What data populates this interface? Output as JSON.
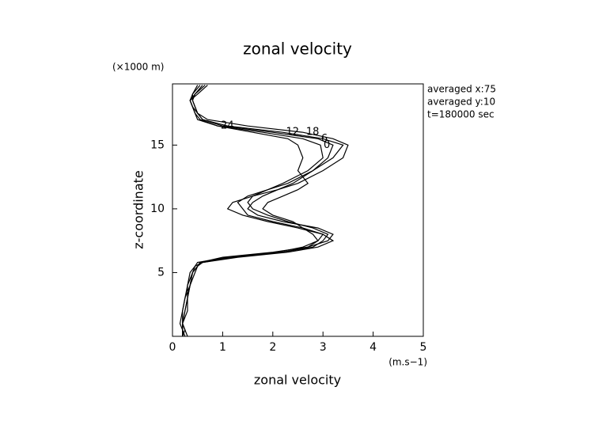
{
  "chart_data": {
    "type": "line",
    "title": "zonal velocity",
    "x_label": "zonal velocity",
    "y_label": "z-coordinate",
    "x_unit": "(m.s−1)",
    "y_unit": "(×1000 m)",
    "annotations": [
      "averaged  x:75",
      "averaged  y:10",
      "t=180000 sec"
    ],
    "xlim": [
      0,
      5
    ],
    "xticks": [
      0,
      1,
      2,
      3,
      4,
      5
    ],
    "ylim": [
      0,
      19.8
    ],
    "yticks": [
      5,
      10,
      15
    ],
    "y": [
      0,
      0.5,
      1,
      2,
      3,
      4,
      5,
      5.5,
      5.8,
      6.2,
      6.6,
      7,
      7.5,
      8,
      8.5,
      9,
      9.5,
      10,
      10.5,
      11,
      11.5,
      12,
      13,
      14,
      15,
      15.5,
      16,
      16.5,
      17,
      17.5,
      18,
      18.5,
      19,
      19.7
    ],
    "series": [
      {
        "name": "0",
        "color": "#000000",
        "values": [
          0.2,
          0.2,
          0.15,
          0.2,
          0.25,
          0.3,
          0.35,
          0.45,
          0.6,
          1.2,
          2.2,
          2.8,
          3.0,
          3.1,
          2.8,
          2.3,
          1.9,
          1.6,
          1.5,
          1.6,
          1.9,
          2.2,
          2.7,
          3.0,
          2.95,
          2.6,
          1.8,
          0.9,
          0.55,
          0.45,
          0.4,
          0.35,
          0.5,
          0.7
        ]
      },
      {
        "name": "6",
        "color": "#000000",
        "values": [
          0.25,
          0.2,
          0.2,
          0.25,
          0.3,
          0.3,
          0.4,
          0.5,
          0.55,
          1.0,
          2.0,
          2.7,
          3.1,
          3.2,
          2.9,
          2.2,
          1.7,
          1.5,
          1.6,
          1.8,
          2.1,
          2.4,
          2.8,
          3.1,
          3.2,
          2.9,
          2.0,
          1.0,
          0.6,
          0.5,
          0.45,
          0.4,
          0.45,
          0.6
        ]
      },
      {
        "name": "12",
        "color": "#000000",
        "values": [
          0.3,
          0.25,
          0.2,
          0.2,
          0.25,
          0.35,
          0.4,
          0.45,
          0.5,
          1.1,
          2.1,
          2.6,
          2.9,
          3.0,
          2.6,
          2.0,
          1.5,
          1.4,
          1.3,
          1.5,
          1.9,
          2.3,
          2.8,
          3.2,
          3.4,
          3.0,
          2.2,
          1.1,
          0.6,
          0.5,
          0.4,
          0.35,
          0.4,
          0.55
        ]
      },
      {
        "name": "18",
        "color": "#000000",
        "values": [
          0.2,
          0.25,
          0.2,
          0.3,
          0.3,
          0.35,
          0.45,
          0.5,
          0.6,
          1.3,
          2.3,
          2.9,
          3.2,
          3.0,
          2.5,
          1.9,
          1.4,
          1.1,
          1.2,
          1.6,
          2.1,
          2.5,
          3.0,
          3.4,
          3.5,
          3.2,
          2.6,
          1.5,
          0.7,
          0.5,
          0.45,
          0.4,
          0.4,
          0.5
        ]
      },
      {
        "name": "24",
        "color": "#000000",
        "values": [
          0.2,
          0.2,
          0.2,
          0.25,
          0.3,
          0.35,
          0.4,
          0.5,
          0.55,
          1.2,
          2.2,
          2.7,
          2.9,
          2.8,
          2.6,
          2.4,
          2.0,
          1.8,
          1.9,
          2.2,
          2.5,
          2.7,
          2.5,
          2.6,
          2.5,
          2.3,
          1.6,
          0.9,
          0.5,
          0.45,
          0.4,
          0.35,
          0.45,
          0.65
        ]
      }
    ]
  }
}
